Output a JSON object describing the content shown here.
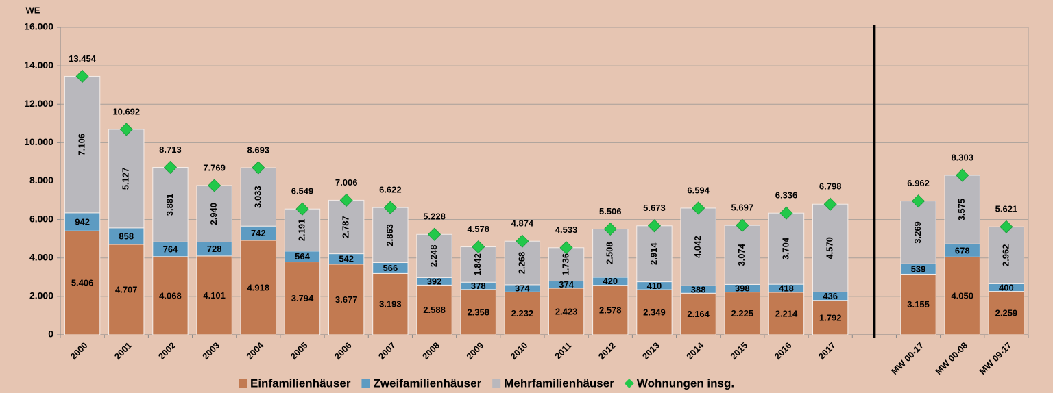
{
  "chart_data": {
    "type": "bar",
    "stacked": true,
    "y_label": "WE",
    "categories": [
      "2000",
      "2001",
      "2002",
      "2003",
      "2004",
      "2005",
      "2006",
      "2007",
      "2008",
      "2009",
      "2010",
      "2011",
      "2012",
      "2013",
      "2014",
      "2015",
      "2016",
      "2017",
      null,
      "MW 00-17",
      "MW 00-08",
      "MW 09-17"
    ],
    "ylim": [
      0,
      16000
    ],
    "yticks": [
      0,
      {
        "value": 2000,
        "label": "2.000"
      },
      {
        "value": 4000,
        "label": "4.000"
      },
      {
        "value": 6000,
        "label": "6.000"
      },
      {
        "value": 8000,
        "label": "8.000"
      },
      {
        "value": 10000,
        "label": "10.000"
      },
      {
        "value": 12000,
        "label": "12.000"
      },
      {
        "value": 14000,
        "label": "14.000"
      },
      {
        "value": 16000,
        "label": "16.000"
      }
    ],
    "grid": true,
    "legend": "bottom",
    "series": [
      {
        "name": "Einfamilienhäuser",
        "type": "bar",
        "color": "#c27a51",
        "values": [
          5406,
          4707,
          4068,
          4101,
          4918,
          3794,
          3677,
          3193,
          2588,
          2358,
          2232,
          2423,
          2578,
          2349,
          2164,
          2225,
          2214,
          1792,
          null,
          3155,
          4050,
          2259
        ],
        "value_labels": [
          "5.406",
          "4.707",
          "4.068",
          "4.101",
          "4.918",
          "3.794",
          "3.677",
          "3.193",
          "2.588",
          "2.358",
          "2.232",
          "2.423",
          "2.578",
          "2.349",
          "2.164",
          "2.225",
          "2.214",
          "1.792",
          null,
          "3.155",
          "4.050",
          "2.259"
        ]
      },
      {
        "name": "Zweifamilienhäuser",
        "type": "bar",
        "color": "#5d9bc2",
        "values": [
          942,
          858,
          764,
          728,
          742,
          564,
          542,
          566,
          392,
          378,
          374,
          374,
          420,
          410,
          388,
          398,
          418,
          436,
          null,
          539,
          678,
          400
        ]
      },
      {
        "name": "Mehrfamilienhäuser",
        "type": "bar",
        "color": "#b9b8bd",
        "values": [
          7106,
          5127,
          3881,
          2940,
          3033,
          2191,
          2787,
          2863,
          2248,
          1842,
          2268,
          1736,
          2508,
          2914,
          4042,
          3074,
          3704,
          4570,
          null,
          3269,
          3575,
          2962
        ],
        "value_labels": [
          "7.106",
          "5.127",
          "3.881",
          "2.940",
          "3.033",
          "2.191",
          "2.787",
          "2.863",
          "2.248",
          "1.842",
          "2.268",
          "1.736",
          "2.508",
          "2.914",
          "4.042",
          "3.074",
          "3.704",
          "4.570",
          null,
          "3.269",
          "3.575",
          "2.962"
        ]
      },
      {
        "name": "Wohnungen insg.",
        "type": "marker",
        "color": "#22c84a",
        "values": [
          13454,
          10692,
          8713,
          7769,
          8693,
          6549,
          7006,
          6622,
          5228,
          4578,
          4874,
          4533,
          5506,
          5673,
          6594,
          5697,
          6336,
          6798,
          null,
          6962,
          8303,
          5621
        ],
        "value_labels": [
          "13.454",
          "10.692",
          "8.713",
          "7.769",
          "8.693",
          "6.549",
          "7.006",
          "6.622",
          "5.228",
          "4.578",
          "4.874",
          "4.533",
          "5.506",
          "5.673",
          "6.594",
          "5.697",
          "6.336",
          "6.798",
          null,
          "6.962",
          "8.303",
          "5.621"
        ]
      }
    ]
  }
}
